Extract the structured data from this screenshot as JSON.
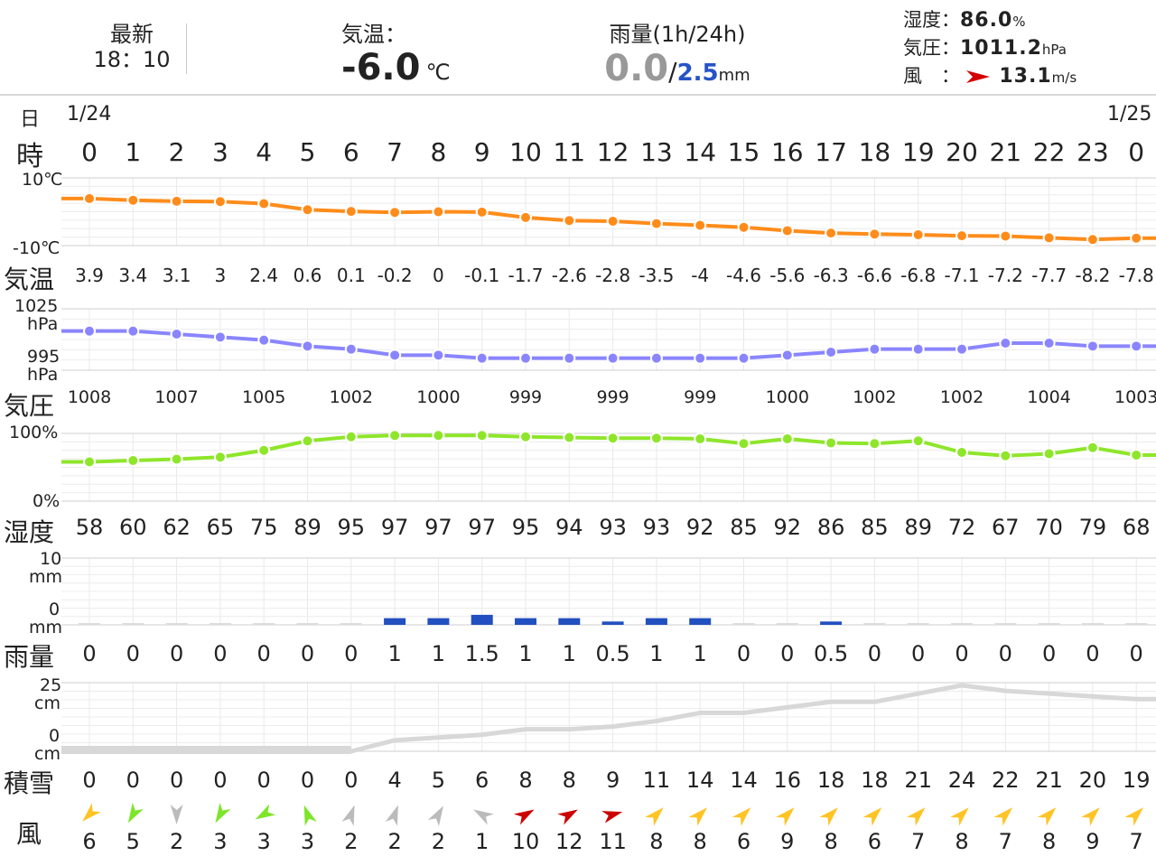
{
  "header": {
    "latest_label": "最新",
    "latest_time": "18：10",
    "temp_label": "気温：",
    "temp_value": "-6.0",
    "temp_unit": "℃",
    "rain_label": "雨量(1h/24h)",
    "rain_1h": "0.0",
    "rain_sep": "/",
    "rain_24h": "2.5",
    "rain_unit": "mm",
    "humidity_label": "湿度：",
    "humidity_value": "86.0",
    "humidity_unit": "%",
    "pressure_label": "気圧：",
    "pressure_value": "1011.2",
    "pressure_unit": "hPa",
    "wind_label": "風　：",
    "wind_value": "13.1",
    "wind_unit": "m/s",
    "wind_arrow_color": "#d40000"
  },
  "labels": {
    "day": "日",
    "hour": "時",
    "temp": "気温",
    "pressure": "気圧",
    "humidity": "湿度",
    "rain": "雨量",
    "snow": "積雪",
    "wind": "風"
  },
  "axes": {
    "temp_top": "10℃",
    "temp_bottom": "-10℃",
    "pressure_top": "1025",
    "pressure_top_unit": "hPa",
    "pressure_bottom": "995",
    "pressure_bottom_unit": "hPa",
    "humidity_top": "100%",
    "humidity_bottom": "0%",
    "rain_top": "10",
    "rain_top_unit": "mm",
    "rain_bottom": "0",
    "rain_bottom_unit": "mm",
    "snow_top": "25",
    "snow_top_unit": "cm",
    "snow_bottom": "0",
    "snow_bottom_unit": "cm"
  },
  "dates": {
    "start": "1/24",
    "end": "1/25"
  },
  "colors": {
    "temp": "#ff8c1a",
    "pressure": "#8a85ff",
    "humidity": "#8ee62a",
    "rain": "#2250c0",
    "snow": "#d8d8d8",
    "wind_red": "#cc0000",
    "wind_yellow": "#ffc425",
    "wind_green": "#7ee62a",
    "wind_gray": "#bbbbbb"
  },
  "chart_data": {
    "type": "line",
    "hours": [
      "0",
      "1",
      "2",
      "3",
      "4",
      "5",
      "6",
      "7",
      "8",
      "9",
      "10",
      "11",
      "12",
      "13",
      "14",
      "15",
      "16",
      "17",
      "18",
      "19",
      "20",
      "21",
      "22",
      "23",
      "0"
    ],
    "temperature": {
      "values": [
        "3.9",
        "3.4",
        "3.1",
        "3",
        "2.4",
        "0.6",
        "0.1",
        "-0.2",
        "0",
        "-0.1",
        "-1.7",
        "-2.6",
        "-2.8",
        "-3.5",
        "-4",
        "-4.6",
        "-5.6",
        "-6.3",
        "-6.6",
        "-6.8",
        "-7.1",
        "-7.2",
        "-7.7",
        "-8.2",
        "-7.8"
      ],
      "ylim": [
        -10,
        10
      ]
    },
    "pressure": {
      "values": [
        "1008",
        "1007",
        "1005",
        "1002",
        "1000",
        "999",
        "999",
        "999",
        "1000",
        "1002",
        "1002",
        "1004",
        "1003"
      ],
      "hourly_estimate": [
        1008,
        1008,
        1007,
        1006,
        1005,
        1003,
        1002,
        1000,
        1000,
        999,
        999,
        999,
        999,
        999,
        999,
        999,
        1000,
        1001,
        1002,
        1002,
        1002,
        1004,
        1004,
        1003,
        1003
      ],
      "ylim": [
        995,
        1025
      ]
    },
    "humidity": {
      "values": [
        "58",
        "60",
        "62",
        "65",
        "75",
        "89",
        "95",
        "97",
        "97",
        "97",
        "95",
        "94",
        "93",
        "93",
        "92",
        "85",
        "92",
        "86",
        "85",
        "89",
        "72",
        "67",
        "70",
        "79",
        "68"
      ],
      "ylim": [
        0,
        100
      ]
    },
    "rain": {
      "values": [
        "0",
        "0",
        "0",
        "0",
        "0",
        "0",
        "0",
        "1",
        "1",
        "1.5",
        "1",
        "1",
        "0.5",
        "1",
        "1",
        "0",
        "0",
        "0.5",
        "0",
        "0",
        "0",
        "0",
        "0",
        "0",
        "0"
      ],
      "ylim": [
        0,
        10
      ]
    },
    "snow": {
      "values": [
        "0",
        "0",
        "0",
        "0",
        "0",
        "0",
        "0",
        "4",
        "5",
        "6",
        "8",
        "8",
        "9",
        "11",
        "14",
        "14",
        "16",
        "18",
        "18",
        "21",
        "24",
        "22",
        "21",
        "20",
        "19"
      ],
      "ylim": [
        0,
        25
      ]
    },
    "wind": {
      "speeds": [
        "6",
        "5",
        "2",
        "3",
        "3",
        "3",
        "2",
        "2",
        "2",
        "1",
        "10",
        "12",
        "11",
        "8",
        "8",
        "6",
        "9",
        "8",
        "6",
        "7",
        "8",
        "7",
        "8",
        "9",
        "7"
      ],
      "directions_deg": [
        135,
        120,
        90,
        120,
        150,
        250,
        290,
        290,
        300,
        210,
        330,
        330,
        345,
        315,
        315,
        315,
        315,
        315,
        315,
        315,
        315,
        315,
        315,
        315,
        315
      ],
      "colors": [
        "#ffc425",
        "#7ee62a",
        "#bbbbbb",
        "#7ee62a",
        "#7ee62a",
        "#7ee62a",
        "#bbbbbb",
        "#bbbbbb",
        "#bbbbbb",
        "#bbbbbb",
        "#cc0000",
        "#cc0000",
        "#cc0000",
        "#ffc425",
        "#ffc425",
        "#ffc425",
        "#ffc425",
        "#ffc425",
        "#ffc425",
        "#ffc425",
        "#ffc425",
        "#ffc425",
        "#ffc425",
        "#ffc425",
        "#ffc425"
      ]
    }
  }
}
